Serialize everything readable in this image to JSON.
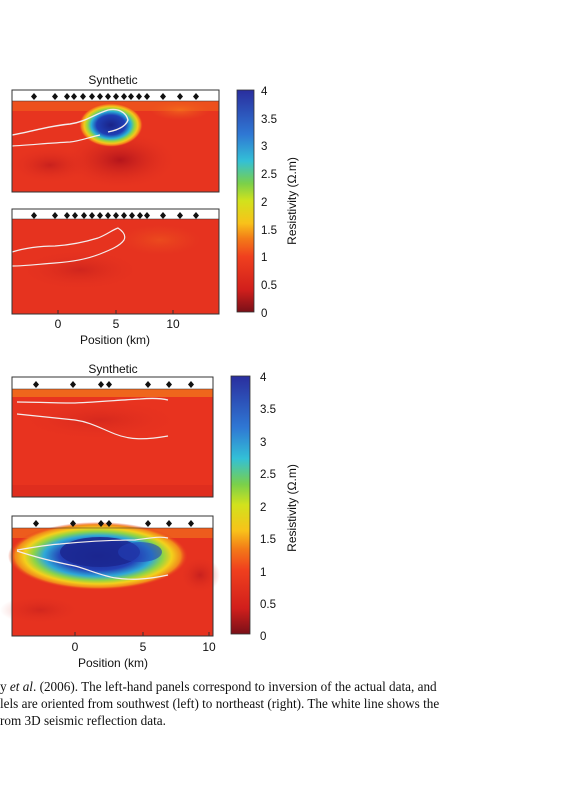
{
  "figure": {
    "top": {
      "title": "Synthetic",
      "x_ticks": [
        "0",
        "5",
        "10"
      ],
      "x_label": "Position (km)",
      "colorbar": {
        "label": "Resistivity (Ω.m)",
        "ticks": [
          "4",
          "3.5",
          "3",
          "2.5",
          "2",
          "1.5",
          "1",
          "0.5",
          "0"
        ]
      }
    },
    "bottom": {
      "title": "Synthetic",
      "x_ticks": [
        "0",
        "5",
        "10"
      ],
      "x_label": "Position (km)",
      "colorbar": {
        "label": "Resistivity (Ω.m)",
        "ticks": [
          "4",
          "3.5",
          "3",
          "2.5",
          "2",
          "1.5",
          "1",
          "0.5",
          "0"
        ]
      }
    },
    "colors": {
      "background_red": "#e8321f",
      "dark_red": "#c0141a",
      "blue": "#1a2fa6",
      "curve": "#f4ecec"
    }
  },
  "caption": {
    "line1_prefix": "y ",
    "line1_italic": "et al",
    "line1_rest": ". (2006). The left-hand panels correspond to inversion of the actual data, and",
    "line2": "lels are oriented from southwest (left) to northeast (right). The white line shows the",
    "line3": "rom 3D seismic reflection data."
  }
}
